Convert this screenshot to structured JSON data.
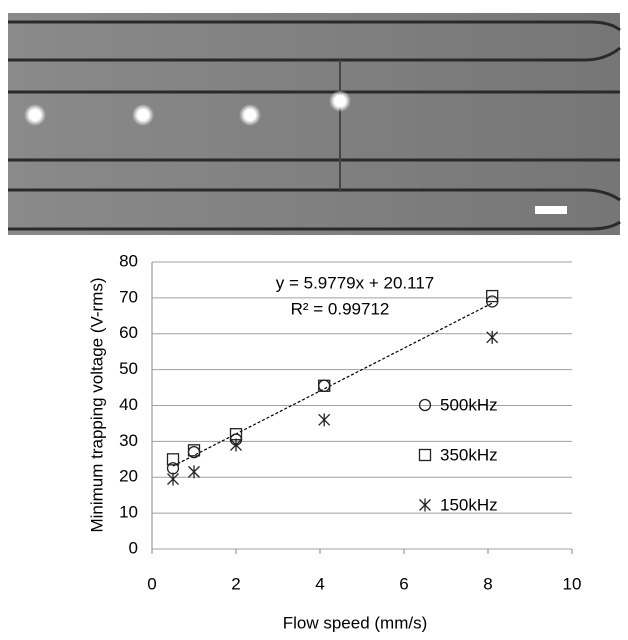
{
  "chart_data": {
    "type": "scatter",
    "xlabel": "Flow speed (mm/s)",
    "ylabel": "Minimum trapping voltage (V-rms)",
    "x": [
      0.5,
      1,
      2,
      4.1,
      8.1
    ],
    "series": [
      {
        "name": "500kHz",
        "marker": "circle",
        "color": "#222222",
        "values": [
          22.5,
          27,
          30.5,
          45.5,
          69
        ]
      },
      {
        "name": "350kHz",
        "marker": "square",
        "color": "#222222",
        "values": [
          25,
          27.5,
          32,
          45.5,
          70.5
        ]
      },
      {
        "name": "150kHz",
        "marker": "asterisk",
        "color": "#222222",
        "values": [
          19.5,
          21.5,
          29,
          36,
          59
        ]
      }
    ],
    "trendline": {
      "equation": "y = 5.9779x + 20.117",
      "r2": "R² = 0.99712",
      "slope": 5.9779,
      "intercept": 20.117
    },
    "xlim": [
      0,
      10
    ],
    "xticks": [
      0,
      2,
      4,
      6,
      8,
      10
    ],
    "ylim": [
      0,
      80
    ],
    "yticks": [
      0,
      10,
      20,
      30,
      40,
      50,
      60,
      70,
      80
    ],
    "grid": true
  }
}
